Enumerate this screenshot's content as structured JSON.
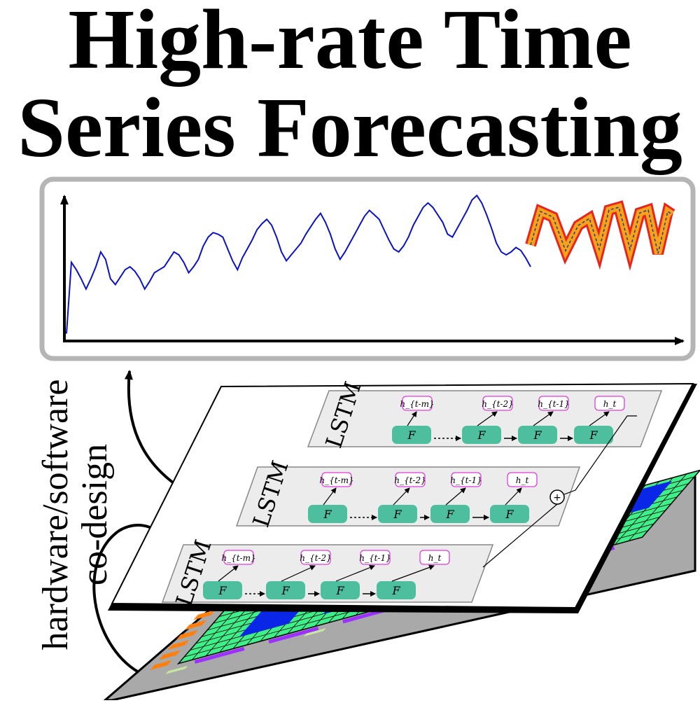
{
  "title": {
    "line1": "High-rate Time",
    "line2": "Series Forecasting"
  },
  "side_label": {
    "line1": "hardware/software",
    "line2": "co-design"
  },
  "layers": [
    {
      "label": "LSTM",
      "outputs": [
        "h_{t-m}",
        "h_{t-2}",
        "h_{t-1}",
        "h_t"
      ],
      "cell": "F"
    },
    {
      "label": "LSTM",
      "outputs": [
        "h_{t-m}",
        "h_{t-2}",
        "h_{t-1}",
        "h_t"
      ],
      "cell": "F"
    },
    {
      "label": "LSTM",
      "outputs": [
        "h_{t-m}",
        "h_{t-2}",
        "h_{t-1}",
        "h_t"
      ],
      "cell": "F"
    }
  ],
  "sum_symbol": "+",
  "colors": {
    "history_line": "#0a12c8",
    "forecast_fill": "#f7a21b",
    "forecast_outline": "#e8241e",
    "forecast_center": "#2a3a8c",
    "cell_fill": "#4dbf9f",
    "output_border": "#e23ae0",
    "chip_grid": "#3ff08a",
    "chip_block": "#0a26e6",
    "chip_io": "#ff7f0e",
    "chip_bus": "#9b30ff",
    "chip_pad": "#c8e6a0"
  },
  "chart_data": {
    "type": "line",
    "series": [
      {
        "values": [
          0.05,
          0.53,
          0.48,
          0.42,
          0.35,
          0.42,
          0.5,
          0.6,
          0.55,
          0.42,
          0.38,
          0.43,
          0.48,
          0.5,
          0.47,
          0.42,
          0.35,
          0.4,
          0.46,
          0.48,
          0.5,
          0.55,
          0.6,
          0.58,
          0.53,
          0.46,
          0.5,
          0.55,
          0.64,
          0.7,
          0.73,
          0.72,
          0.7,
          0.62,
          0.54,
          0.48,
          0.56,
          0.62,
          0.68,
          0.75,
          0.79,
          0.82,
          0.78,
          0.7,
          0.6,
          0.54,
          0.58,
          0.62,
          0.66,
          0.72,
          0.77,
          0.82,
          0.86,
          0.8,
          0.72,
          0.62,
          0.55,
          0.6,
          0.66,
          0.72,
          0.78,
          0.84,
          0.88,
          0.85,
          0.82,
          0.75,
          0.68,
          0.62,
          0.6,
          0.64,
          0.7,
          0.78,
          0.84,
          0.9,
          0.93,
          0.9,
          0.85,
          0.8,
          0.72,
          0.7,
          0.76,
          0.82,
          0.88,
          0.95,
          0.98,
          0.93,
          0.85,
          0.76,
          0.66,
          0.6,
          0.58,
          0.6,
          0.63,
          0.61,
          0.56,
          0.5
        ]
      }
    ]
  }
}
